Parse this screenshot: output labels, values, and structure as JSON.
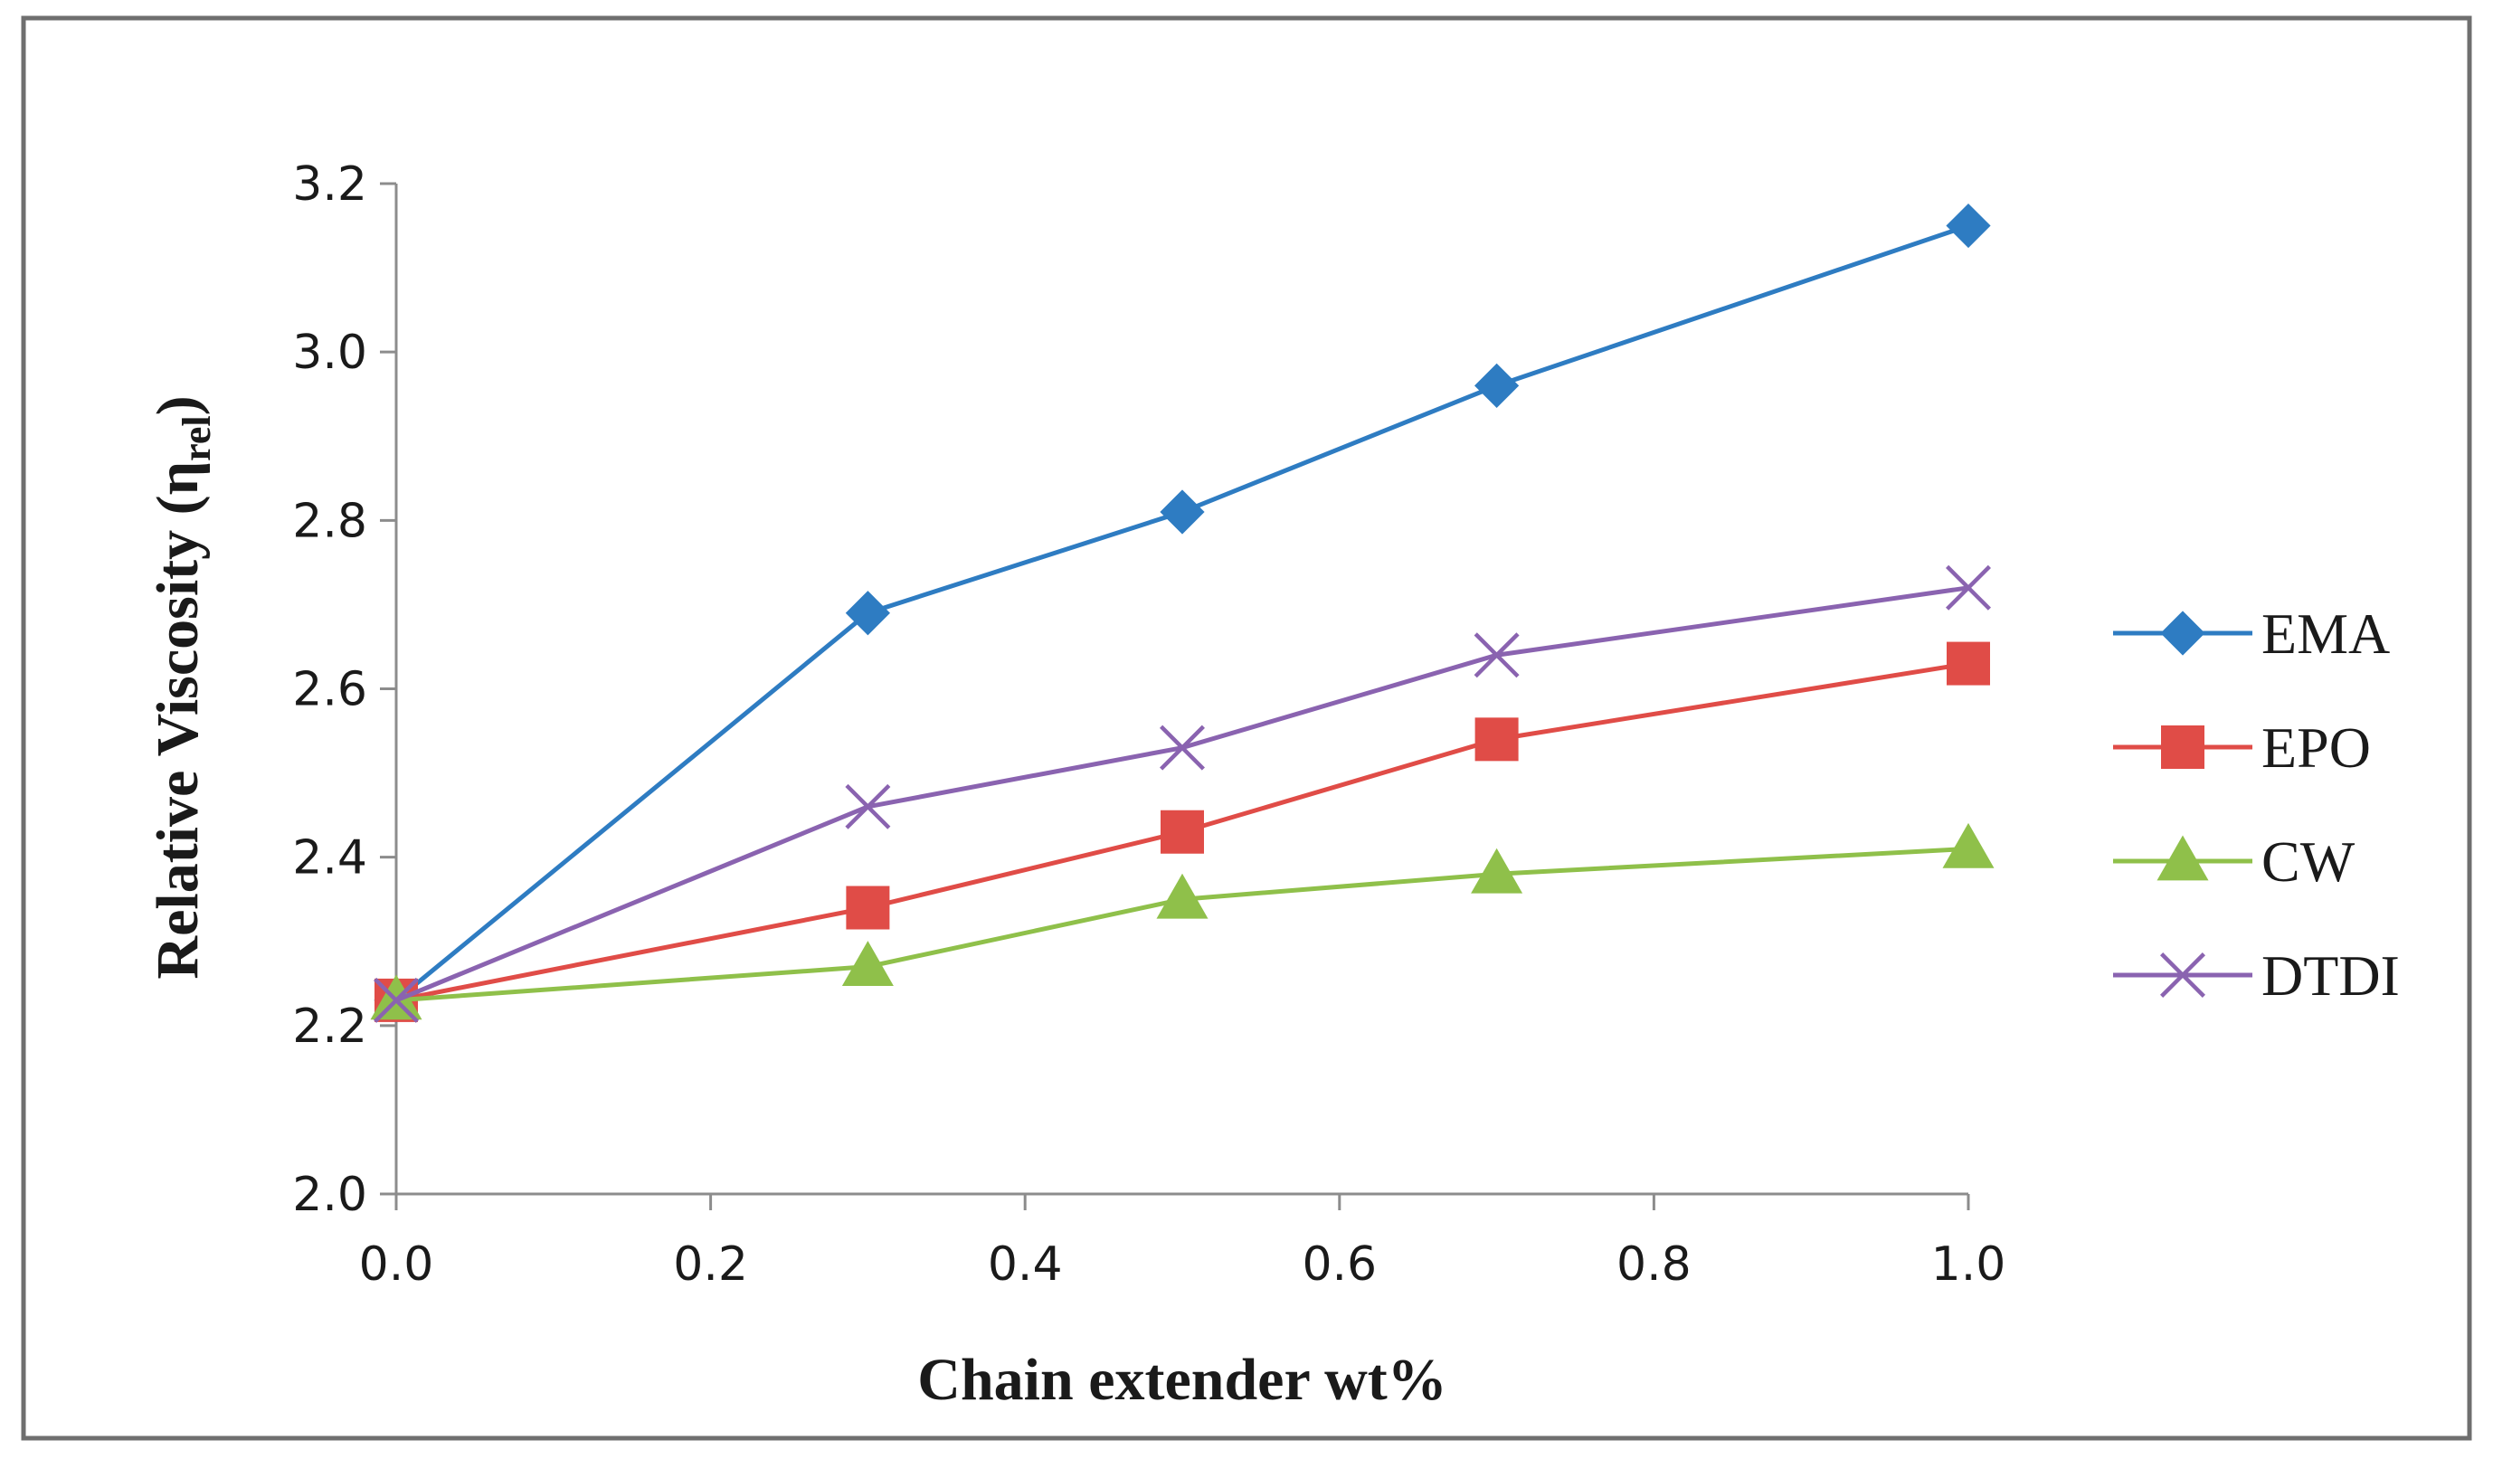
{
  "chart_data": {
    "type": "line",
    "title": "",
    "xlabel": "Chain extender wt%",
    "ylabel_main": "Relative Viscosity (η",
    "ylabel_sub": "rel",
    "ylabel_close": ")",
    "xlim": [
      0.0,
      1.0
    ],
    "ylim": [
      2.0,
      3.2
    ],
    "xticks": [
      "0.0",
      "0.2",
      "0.4",
      "0.6",
      "0.8",
      "1.0"
    ],
    "yticks": [
      "2.0",
      "2.2",
      "2.4",
      "2.6",
      "2.8",
      "3.0",
      "3.2"
    ],
    "grid": false,
    "legend_position": "right",
    "x": [
      0.0,
      0.3,
      0.5,
      0.7,
      1.0
    ],
    "series": [
      {
        "name": "EMA",
        "values": [
          2.23,
          2.69,
          2.81,
          2.96,
          3.15
        ],
        "color": "#2e7cc2",
        "marker": "diamond"
      },
      {
        "name": "EPO",
        "values": [
          2.23,
          2.34,
          2.43,
          2.54,
          2.63
        ],
        "color": "#e04c47",
        "marker": "square"
      },
      {
        "name": "CW",
        "values": [
          2.23,
          2.27,
          2.35,
          2.38,
          2.41
        ],
        "color": "#8fc04a",
        "marker": "triangle"
      },
      {
        "name": "DTDI",
        "values": [
          2.23,
          2.46,
          2.53,
          2.64,
          2.72
        ],
        "color": "#8a63b0",
        "marker": "x"
      }
    ]
  }
}
